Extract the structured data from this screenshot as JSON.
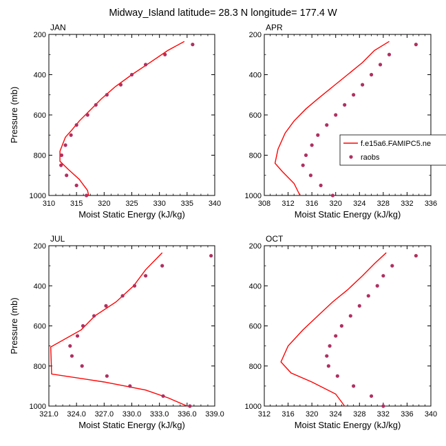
{
  "title": "Midway_Island  latitude= 28.3 N longitude= 177.4 W",
  "colors": {
    "model": "#ff0000",
    "obs": "#b03060",
    "axis": "#000000"
  },
  "legend": {
    "entries": [
      {
        "label": "f.e15a6.FAMIPC5.ne",
        "kind": "line"
      },
      {
        "label": "raobs",
        "kind": "marker"
      }
    ]
  },
  "chart_data": [
    {
      "type": "line",
      "label": "JAN",
      "xlabel": "Moist Static Energy (kJ/kg)",
      "ylabel": "Pressure (mb)",
      "xlim": [
        310,
        340
      ],
      "ylim": [
        1000,
        200
      ],
      "xticks": [
        310,
        315,
        320,
        325,
        330,
        335,
        340
      ],
      "xtick_labels": [
        "310",
        "315",
        "320",
        "325",
        "330",
        "335",
        "340"
      ],
      "yticks": [
        200,
        400,
        600,
        800,
        1000
      ],
      "ytick_labels": [
        "200",
        "400",
        "600",
        "800",
        "1000"
      ],
      "model": [
        [
          334.5,
          235
        ],
        [
          331.5,
          280
        ],
        [
          328,
          345
        ],
        [
          325,
          400
        ],
        [
          322,
          460
        ],
        [
          319.5,
          520
        ],
        [
          317.5,
          575
        ],
        [
          315.5,
          630
        ],
        [
          314,
          680
        ],
        [
          313,
          710
        ],
        [
          312.5,
          745
        ],
        [
          312,
          780
        ],
        [
          312,
          830
        ],
        [
          313.5,
          870
        ],
        [
          315.5,
          920
        ],
        [
          317,
          975
        ],
        [
          317.2,
          1000
        ]
      ],
      "obs": [
        [
          336,
          250
        ],
        [
          331,
          300
        ],
        [
          327.5,
          350
        ],
        [
          325,
          400
        ],
        [
          323,
          450
        ],
        [
          320.5,
          500
        ],
        [
          318.5,
          550
        ],
        [
          317,
          600
        ],
        [
          315,
          650
        ],
        [
          314,
          700
        ],
        [
          313,
          750
        ],
        [
          312.3,
          800
        ],
        [
          312.2,
          850
        ],
        [
          313.2,
          900
        ],
        [
          315,
          950
        ],
        [
          316.8,
          1000
        ]
      ]
    },
    {
      "type": "line",
      "label": "APR",
      "xlabel": "Moist Static Energy (kJ/kg)",
      "ylabel": "",
      "xlim": [
        308,
        336
      ],
      "ylim": [
        1000,
        200
      ],
      "xticks": [
        308,
        312,
        316,
        320,
        324,
        328,
        332,
        336
      ],
      "xtick_labels": [
        "308",
        "312",
        "316",
        "320",
        "324",
        "328",
        "332",
        "336"
      ],
      "yticks": [
        200,
        400,
        600,
        800,
        1000
      ],
      "ytick_labels": [
        "200",
        "400",
        "600",
        "800",
        "1000"
      ],
      "model": [
        [
          329,
          235
        ],
        [
          326.5,
          280
        ],
        [
          324.5,
          340
        ],
        [
          322,
          400
        ],
        [
          319.5,
          460
        ],
        [
          317,
          520
        ],
        [
          315,
          570
        ],
        [
          313,
          630
        ],
        [
          311.5,
          690
        ],
        [
          310.3,
          770
        ],
        [
          309.8,
          840
        ],
        [
          311,
          880
        ],
        [
          313,
          940
        ],
        [
          314,
          1000
        ]
      ],
      "obs": [
        [
          333.5,
          250
        ],
        [
          329,
          300
        ],
        [
          327.5,
          350
        ],
        [
          326,
          400
        ],
        [
          324.5,
          450
        ],
        [
          323,
          500
        ],
        [
          321.5,
          550
        ],
        [
          320,
          600
        ],
        [
          318.5,
          650
        ],
        [
          317,
          700
        ],
        [
          316,
          750
        ],
        [
          315,
          800
        ],
        [
          314.5,
          850
        ],
        [
          315.8,
          900
        ],
        [
          317.5,
          950
        ],
        [
          319.5,
          1000
        ]
      ]
    },
    {
      "type": "line",
      "label": "JUL",
      "xlabel": "Moist Static Energy (kJ/kg)",
      "ylabel": "Pressure (mb)",
      "xlim": [
        321,
        339
      ],
      "ylim": [
        1000,
        200
      ],
      "xticks": [
        321,
        324,
        327,
        330,
        333,
        336,
        339
      ],
      "xtick_labels": [
        "321.0",
        "324.0",
        "327.0",
        "330.0",
        "333.0",
        "336.0",
        "339.0"
      ],
      "yticks": [
        200,
        400,
        600,
        800,
        1000
      ],
      "ytick_labels": [
        "200",
        "400",
        "600",
        "800",
        "1000"
      ],
      "model": [
        [
          333.3,
          235
        ],
        [
          331.5,
          320
        ],
        [
          330.2,
          400
        ],
        [
          328.3,
          480
        ],
        [
          326,
          550
        ],
        [
          324.5,
          620
        ],
        [
          321.2,
          705
        ],
        [
          321.3,
          840
        ],
        [
          327,
          880
        ],
        [
          331.5,
          920
        ],
        [
          334,
          960
        ],
        [
          336,
          1000
        ]
      ],
      "obs": [
        [
          338.6,
          250
        ],
        [
          333.3,
          300
        ],
        [
          331.5,
          350
        ],
        [
          330.3,
          400
        ],
        [
          329,
          450
        ],
        [
          327.2,
          500
        ],
        [
          325.9,
          550
        ],
        [
          324.7,
          600
        ],
        [
          324.1,
          650
        ],
        [
          323.3,
          700
        ],
        [
          323.5,
          750
        ],
        [
          324.6,
          800
        ],
        [
          327.3,
          850
        ],
        [
          329.8,
          900
        ],
        [
          333.4,
          950
        ],
        [
          336.3,
          1000
        ]
      ]
    },
    {
      "type": "line",
      "label": "OCT",
      "xlabel": "Moist Static Energy (kJ/kg)",
      "ylabel": "",
      "xlim": [
        312,
        340
      ],
      "ylim": [
        1000,
        200
      ],
      "xticks": [
        312,
        316,
        320,
        324,
        328,
        332,
        336,
        340
      ],
      "xtick_labels": [
        "312",
        "316",
        "320",
        "324",
        "328",
        "332",
        "336",
        "340"
      ],
      "yticks": [
        200,
        400,
        600,
        800,
        1000
      ],
      "ytick_labels": [
        "200",
        "400",
        "600",
        "800",
        "1000"
      ],
      "model": [
        [
          332.5,
          235
        ],
        [
          330.5,
          290
        ],
        [
          328.5,
          350
        ],
        [
          326,
          420
        ],
        [
          323.5,
          480
        ],
        [
          321,
          550
        ],
        [
          318.5,
          620
        ],
        [
          316,
          700
        ],
        [
          314.8,
          780
        ],
        [
          316.5,
          835
        ],
        [
          320,
          880
        ],
        [
          324,
          940
        ],
        [
          325.5,
          1000
        ]
      ],
      "obs": [
        [
          337.5,
          250
        ],
        [
          333.5,
          300
        ],
        [
          332,
          350
        ],
        [
          331,
          400
        ],
        [
          329.5,
          450
        ],
        [
          328,
          500
        ],
        [
          326.5,
          550
        ],
        [
          325,
          600
        ],
        [
          324,
          650
        ],
        [
          323,
          700
        ],
        [
          322.5,
          750
        ],
        [
          322.8,
          800
        ],
        [
          324.3,
          850
        ],
        [
          327,
          900
        ],
        [
          330,
          950
        ],
        [
          332,
          1000
        ]
      ]
    }
  ]
}
